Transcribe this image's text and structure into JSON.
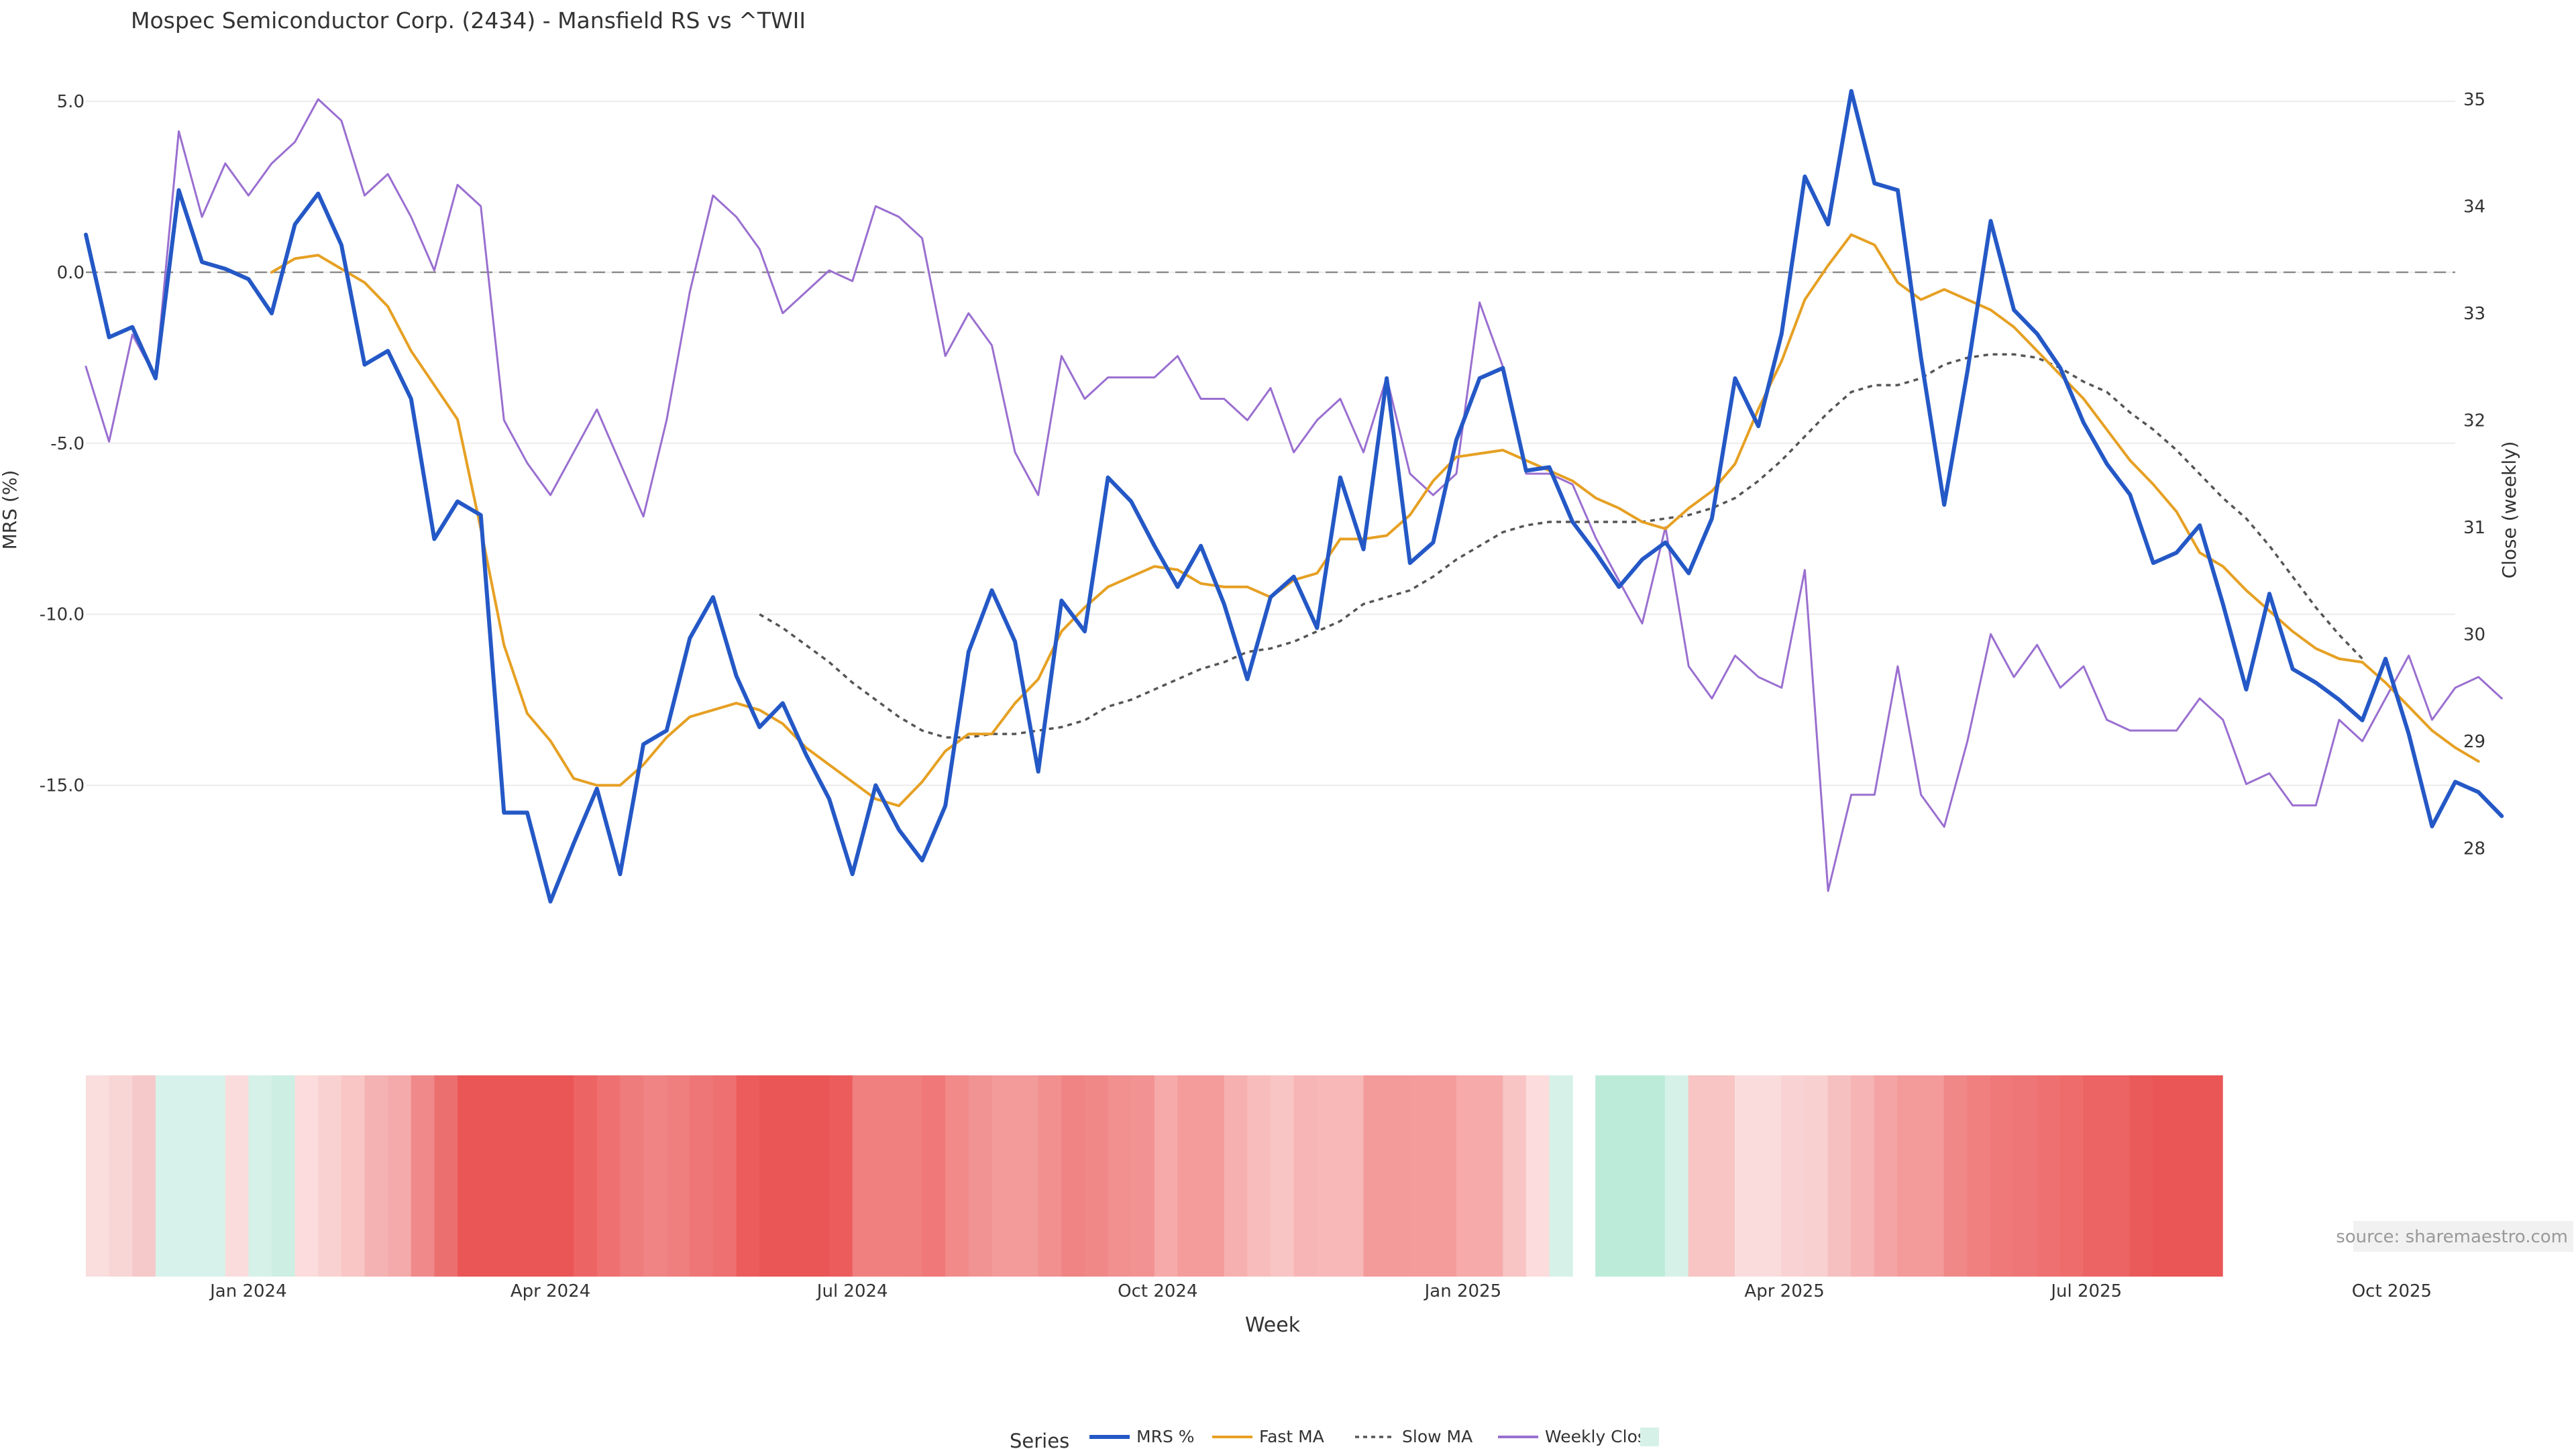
{
  "chart_data": {
    "type": "line",
    "title": "Mospec Semiconductor Corp. (2434) - Mansfield RS vs ^TWII",
    "xlabel": "Week",
    "ylabel": "MRS (%)",
    "y2label": "Close (weekly)",
    "source": "source: sharemaestro.com",
    "ylim": [
      -19.5,
      6.0
    ],
    "y2lim": [
      27.15,
      35.3
    ],
    "yticks": [
      "5.0",
      "0.0",
      "-5.0",
      "-10.0",
      "-15.0"
    ],
    "yticks_values": [
      5,
      0,
      -5,
      -10,
      -15
    ],
    "y2ticks": [
      "35",
      "34",
      "33",
      "32",
      "31",
      "30",
      "29",
      "28"
    ],
    "y2ticks_values": [
      35,
      34,
      33,
      32,
      31,
      30,
      29,
      28
    ],
    "x_date_range": [
      "2023-11-13",
      "2025-10-27"
    ],
    "xticks": [
      {
        "label": "Jan 2024",
        "date": "2024-01-01"
      },
      {
        "label": "Apr 2024",
        "date": "2024-04-01"
      },
      {
        "label": "Jul 2024",
        "date": "2024-07-01"
      },
      {
        "label": "Oct 2024",
        "date": "2024-10-01"
      },
      {
        "label": "Jan 2025",
        "date": "2025-01-01"
      },
      {
        "label": "Apr 2025",
        "date": "2025-04-01"
      },
      {
        "label": "Jul 2025",
        "date": "2025-07-01"
      },
      {
        "label": "Oct 2025",
        "date": "2025-10-01"
      }
    ],
    "reference_line": 0,
    "grid": true,
    "legend_position": "bottom-center",
    "legend_title": "Series",
    "series": [
      {
        "name": "MRS %",
        "color": "#2458c6",
        "style": "solid",
        "axis": "left",
        "start": "2023-11-13",
        "step_days": 7,
        "values": [
          1.1,
          -1.9,
          -1.6,
          -3.1,
          2.4,
          0.3,
          0.1,
          -0.2,
          -1.2,
          1.4,
          2.3,
          0.8,
          -2.7,
          -2.3,
          -3.7,
          -7.8,
          -6.7,
          -7.1,
          -15.8,
          -15.8,
          -18.4,
          -16.7,
          -15.1,
          -17.6,
          -13.8,
          -13.4,
          -10.7,
          -9.5,
          -11.8,
          -13.3,
          -12.6,
          -14.1,
          -15.4,
          -17.6,
          -15.0,
          -16.3,
          -17.2,
          -15.6,
          -11.1,
          -9.3,
          -10.8,
          -14.6,
          -9.6,
          -10.5,
          -6.0,
          -6.7,
          -8.0,
          -9.2,
          -8.0,
          -9.7,
          -11.9,
          -9.5,
          -8.9,
          -10.4,
          -6.0,
          -8.1,
          -3.1,
          -8.5,
          -7.9,
          -4.9,
          -3.1,
          -2.8,
          -5.8,
          -5.7,
          -7.3,
          -8.2,
          -9.2,
          -8.4,
          -7.9,
          -8.8,
          -7.2,
          -3.1,
          -4.5,
          -1.8,
          2.8,
          1.4,
          5.3,
          2.6,
          2.4,
          -2.5,
          -6.8,
          -2.9,
          1.5,
          -1.1,
          -1.8,
          -2.8,
          -4.4,
          -5.6,
          -6.5,
          -8.5,
          -8.2,
          -7.4,
          -9.7,
          -12.2,
          -9.4,
          -11.6,
          -12.0,
          -12.5,
          -13.1,
          -11.3,
          -13.5,
          -16.2,
          -14.9,
          -15.2,
          -15.9
        ]
      },
      {
        "name": "Fast MA",
        "color": "#e6a023",
        "style": "solid",
        "axis": "left",
        "start": "2024-01-08",
        "step_days": 7,
        "values": [
          0.0,
          0.4,
          0.5,
          0.1,
          -0.3,
          -1.0,
          -2.3,
          -3.3,
          -4.3,
          -7.5,
          -10.9,
          -12.9,
          -13.7,
          -14.8,
          -15.0,
          -15.0,
          -14.4,
          -13.6,
          -13.0,
          -12.8,
          -12.6,
          -12.8,
          -13.2,
          -13.9,
          -14.4,
          -14.9,
          -15.4,
          -15.6,
          -14.9,
          -14.0,
          -13.5,
          -13.5,
          -12.6,
          -11.9,
          -10.5,
          -9.8,
          -9.2,
          -8.9,
          -8.6,
          -8.7,
          -9.1,
          -9.2,
          -9.2,
          -9.5,
          -9.0,
          -8.8,
          -7.8,
          -7.8,
          -7.7,
          -7.1,
          -6.1,
          -5.4,
          -5.3,
          -5.2,
          -5.5,
          -5.8,
          -6.1,
          -6.6,
          -6.9,
          -7.3,
          -7.5,
          -6.9,
          -6.4,
          -5.6,
          -4.0,
          -2.6,
          -0.8,
          0.2,
          1.1,
          0.8,
          -0.3,
          -0.8,
          -0.5,
          -0.8,
          -1.1,
          -1.6,
          -2.3,
          -3.0,
          -3.7,
          -4.6,
          -5.5,
          -6.2,
          -7.0,
          -8.2,
          -8.6,
          -9.3,
          -9.9,
          -10.5,
          -11.0,
          -11.3,
          -11.4,
          -12.0,
          -12.7,
          -13.4,
          -13.9,
          -14.3
        ]
      },
      {
        "name": "Slow MA",
        "color": "#555555",
        "style": "dotted",
        "axis": "left",
        "start": "2024-06-03",
        "step_days": 7,
        "values": [
          -10.0,
          -10.4,
          -10.9,
          -11.4,
          -12.0,
          -12.5,
          -13.0,
          -13.4,
          -13.6,
          -13.6,
          -13.5,
          -13.5,
          -13.4,
          -13.3,
          -13.1,
          -12.7,
          -12.5,
          -12.2,
          -11.9,
          -11.6,
          -11.4,
          -11.1,
          -11.0,
          -10.8,
          -10.5,
          -10.2,
          -9.7,
          -9.5,
          -9.3,
          -8.9,
          -8.4,
          -8.0,
          -7.6,
          -7.4,
          -7.3,
          -7.3,
          -7.3,
          -7.3,
          -7.3,
          -7.2,
          -7.1,
          -6.9,
          -6.6,
          -6.1,
          -5.5,
          -4.8,
          -4.1,
          -3.5,
          -3.3,
          -3.3,
          -3.1,
          -2.7,
          -2.5,
          -2.4,
          -2.4,
          -2.5,
          -2.8,
          -3.2,
          -3.5,
          -4.1,
          -4.6,
          -5.2,
          -5.9,
          -6.6,
          -7.2,
          -8.0,
          -8.9,
          -9.8,
          -10.6,
          -11.3
        ]
      },
      {
        "name": "Weekly Close",
        "color": "#9a6fd0",
        "style": "solid",
        "axis": "right",
        "start": "2023-11-13",
        "step_days": 7,
        "values": [
          32.5,
          31.8,
          32.8,
          32.4,
          34.7,
          33.9,
          34.4,
          34.1,
          34.4,
          34.6,
          35.0,
          34.8,
          34.1,
          34.3,
          33.9,
          33.4,
          34.2,
          34.0,
          32.0,
          31.6,
          31.3,
          31.7,
          32.1,
          31.6,
          31.1,
          32.0,
          33.2,
          34.1,
          33.9,
          33.6,
          33.0,
          33.2,
          33.4,
          33.3,
          34.0,
          33.9,
          33.7,
          32.6,
          33.0,
          32.7,
          31.7,
          31.3,
          32.6,
          32.2,
          32.4,
          32.4,
          32.4,
          32.6,
          32.2,
          32.2,
          32.0,
          32.3,
          31.7,
          32.0,
          32.2,
          31.7,
          32.4,
          31.5,
          31.3,
          31.5,
          33.1,
          32.5,
          31.5,
          31.5,
          31.4,
          30.9,
          30.5,
          30.1,
          31.0,
          29.7,
          29.4,
          29.8,
          29.6,
          29.5,
          30.6,
          27.6,
          28.5,
          28.5,
          29.7,
          28.5,
          28.2,
          29.0,
          30.0,
          29.6,
          29.9,
          29.5,
          29.7,
          29.2,
          29.1,
          29.1,
          29.1,
          29.4,
          29.2,
          28.6,
          28.7,
          28.4,
          28.4,
          29.2,
          29.0,
          29.4,
          29.8,
          29.2,
          29.5,
          29.6,
          29.4
        ]
      }
    ],
    "heatmap": {
      "description_values": "per-week MRS band colour strip",
      "start": "2023-11-06",
      "step_days": 7,
      "gap_after_index": 64,
      "colors": [
        "#d1efe6",
        "#fadddd",
        "#f8d6d6",
        "#f5c9c9",
        "#d7f2ea",
        "#d7f2ea",
        "#d7f2ea",
        "#fadcdc",
        "#d6f1e8",
        "#cdeee3",
        "#fcdcdc",
        "#fad1d1",
        "#f9c5c5",
        "#f5b2b2",
        "#f4aaaa",
        "#f08a8a",
        "#ec6f6f",
        "#ea5656",
        "#ea5656",
        "#ea5656",
        "#ea5656",
        "#ea5656",
        "#ed6464",
        "#ef7070",
        "#ef7c7c",
        "#f08484",
        "#ef7e7e",
        "#ef7676",
        "#ee7070",
        "#ec5c5c",
        "#ea5656",
        "#ea5656",
        "#ea5656",
        "#ec5c5c",
        "#f08080",
        "#f08080",
        "#f07f7f",
        "#f07878",
        "#f28a8a",
        "#f29393",
        "#f39a9a",
        "#f39a9a",
        "#f29090",
        "#f08484",
        "#f08888",
        "#f29090",
        "#f29292",
        "#f6aaaa",
        "#f49c9c",
        "#f49c9c",
        "#f7b0b0",
        "#f8bcbc",
        "#f9c4c4",
        "#f8b5b5",
        "#f8b8b8",
        "#f8b8b8",
        "#f39a9a",
        "#f39a9a",
        "#f49c9c",
        "#f49c9c",
        "#f6aaaa",
        "#f6aaaa",
        "#f9c4c4",
        "#fcdcdc",
        "#d6f1e8",
        "#bdebda",
        "#bdebda",
        "#bdebda",
        "#d6f1e8",
        "#f8c4c4",
        "#f8c4c4",
        "#fadcdc",
        "#fadcdc",
        "#f9d3d3",
        "#f9d0d0",
        "#f7c0c0",
        "#f6b4b4",
        "#f4a4a4",
        "#f39a9a",
        "#f39a9a",
        "#f08888",
        "#f08080",
        "#ef7878",
        "#ef7676",
        "#ee7070",
        "#ee6c6c",
        "#ec6464",
        "#ec6464",
        "#ea5a5a",
        "#ea5656",
        "#ea5656",
        "#ea5656"
      ]
    }
  }
}
